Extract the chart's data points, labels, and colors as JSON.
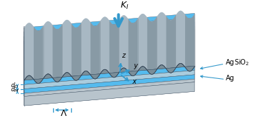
{
  "bg_color": "#ffffff",
  "c_corr_top": "#9dadb8",
  "c_corr_shadow": "#7a8e99",
  "c_corr_lit": "#b0c0cc",
  "c_ag": "#55bbee",
  "c_sio2": "#aaccdd",
  "c_base_top": "#b8c4cc",
  "c_base_side": "#a0acb4",
  "c_side_gray": "#8899a5",
  "arrow_color": "#3399cc",
  "n_ridges": 9,
  "wave_amp": 7,
  "title": ""
}
